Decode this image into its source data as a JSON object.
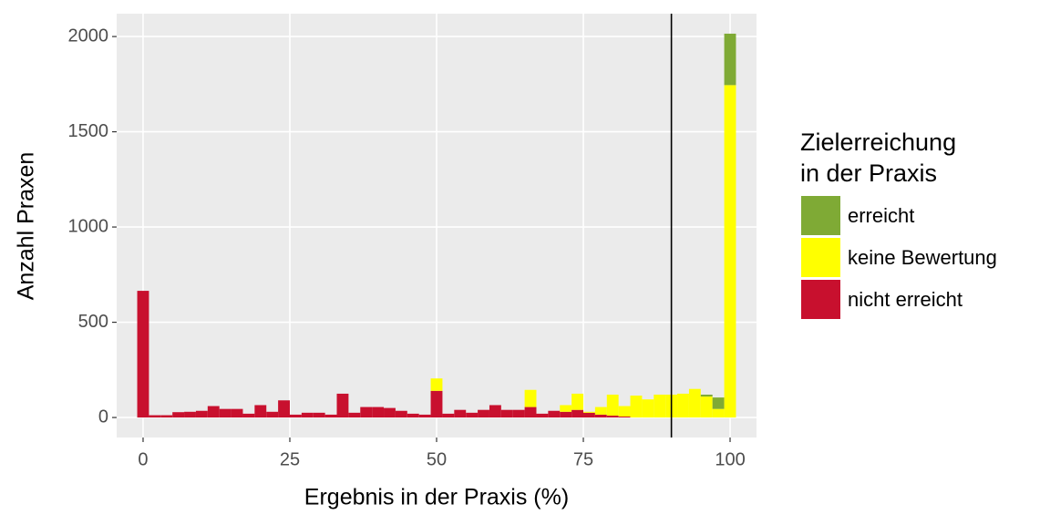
{
  "chart_data": {
    "type": "histogram",
    "xlabel": "Ergebnis in der Praxis (%)",
    "ylabel": "Anzahl Praxen",
    "legend_title": [
      "Zielerreichung",
      "in der Praxis"
    ],
    "legend": "right",
    "grid": true,
    "vline": 90,
    "bins": [
      -1,
      1,
      3,
      5,
      7,
      9,
      11,
      13,
      15,
      17,
      19,
      21,
      23,
      25,
      27,
      29,
      31,
      33,
      35,
      37,
      39,
      41,
      43,
      45,
      47,
      49,
      51,
      53,
      55,
      57,
      59,
      61,
      63,
      65,
      67,
      69,
      71,
      73,
      75,
      77,
      79,
      81,
      83,
      85,
      87,
      89,
      91,
      93,
      95,
      97,
      99,
      101
    ],
    "series": [
      {
        "name": "erreicht",
        "color": "#7faa35",
        "values": [
          0,
          0,
          0,
          0,
          0,
          0,
          0,
          0,
          0,
          0,
          0,
          0,
          0,
          0,
          0,
          0,
          0,
          0,
          0,
          0,
          0,
          0,
          0,
          0,
          0,
          0,
          0,
          0,
          0,
          0,
          0,
          0,
          0,
          0,
          0,
          0,
          0,
          0,
          0,
          0,
          0,
          0,
          0,
          0,
          0,
          0,
          0,
          0,
          10,
          60,
          270
        ]
      },
      {
        "name": "keine Bewertung",
        "color": "#ffff00",
        "values": [
          0,
          0,
          0,
          0,
          0,
          0,
          0,
          0,
          0,
          0,
          0,
          0,
          0,
          0,
          0,
          0,
          0,
          0,
          0,
          0,
          0,
          0,
          0,
          0,
          0,
          65,
          0,
          0,
          0,
          0,
          0,
          0,
          0,
          90,
          0,
          0,
          35,
          85,
          5,
          40,
          110,
          55,
          115,
          95,
          120,
          120,
          125,
          150,
          110,
          45,
          1745
        ]
      },
      {
        "name": "nicht erreicht",
        "color": "#c8102e",
        "values": [
          665,
          12,
          12,
          28,
          30,
          35,
          60,
          45,
          45,
          20,
          65,
          30,
          90,
          15,
          25,
          25,
          15,
          125,
          25,
          55,
          55,
          50,
          35,
          20,
          15,
          140,
          20,
          40,
          25,
          40,
          65,
          40,
          40,
          55,
          20,
          35,
          30,
          40,
          25,
          15,
          10,
          5,
          0,
          0,
          0,
          0,
          0,
          0,
          0,
          0,
          0
        ]
      }
    ],
    "xlim": [
      -4.5,
      104.5
    ],
    "xticks": [
      0,
      25,
      50,
      75,
      100
    ],
    "ylim": [
      -105,
      2120
    ],
    "yticks": [
      0,
      500,
      1000,
      1500,
      2000
    ]
  }
}
